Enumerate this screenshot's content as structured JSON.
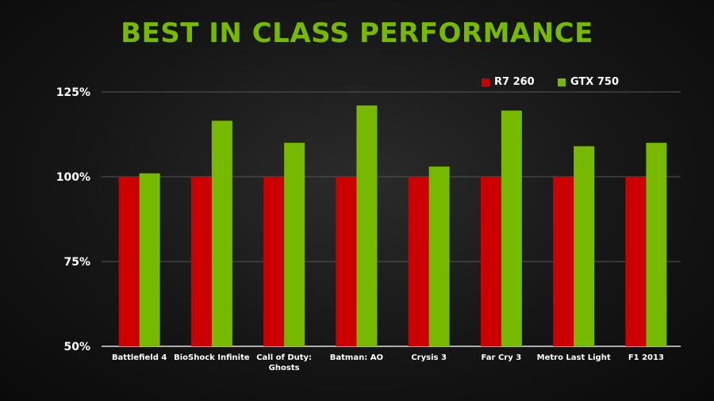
{
  "title": "BEST IN CLASS PERFORMANCE",
  "colors": {
    "title": "#76b900",
    "r7": "#cc0000",
    "gtx": "#76b900",
    "grid": "#555555",
    "text": "#ffffff"
  },
  "chart_data": {
    "type": "bar",
    "categories": [
      "Battlefield 4",
      "BioShock Infinite",
      "Call of Duty: Ghosts",
      "Batman: AO",
      "Crysis 3",
      "Far Cry 3",
      "Metro Last Light",
      "F1 2013"
    ],
    "series": [
      {
        "name": "R7 260",
        "values": [
          100,
          100,
          100,
          100,
          100,
          100,
          100,
          100
        ]
      },
      {
        "name": "GTX 750",
        "values": [
          101,
          116.5,
          110,
          121,
          103,
          119.5,
          109,
          110
        ]
      }
    ],
    "ylim": [
      50,
      125
    ],
    "yticks": [
      50,
      75,
      100,
      125
    ],
    "ytick_labels": [
      "50%",
      "75%",
      "100%",
      "125%"
    ],
    "category_labels": [
      [
        "Battlefield 4"
      ],
      [
        "BioShock Infinite"
      ],
      [
        "Call of Duty:",
        "Ghosts"
      ],
      [
        "Batman: AO"
      ],
      [
        "Crysis 3"
      ],
      [
        "Far Cry 3"
      ],
      [
        "Metro Last Light"
      ],
      [
        "F1 2013"
      ]
    ],
    "grid": true,
    "legend_position": "top-right"
  }
}
